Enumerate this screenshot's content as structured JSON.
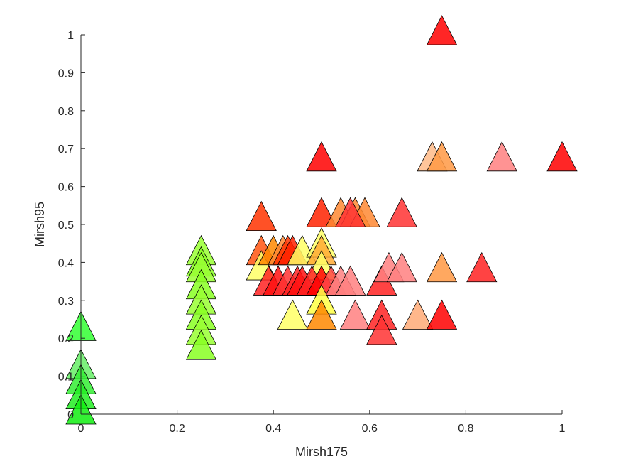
{
  "chart_data": {
    "type": "scatter",
    "title": "",
    "xlabel": "Mirsh175",
    "ylabel": "Mirsh95",
    "xlim": [
      0,
      1
    ],
    "ylim": [
      0,
      1
    ],
    "x_ticks": [
      "0",
      "0.2",
      "0.4",
      "0.6",
      "0.8",
      "1"
    ],
    "y_ticks": [
      "0",
      "0.1",
      "0.2",
      "0.3",
      "0.4",
      "0.5",
      "0.6",
      "0.7",
      "0.8",
      "0.9",
      "1"
    ],
    "x_tick_values": [
      0,
      0.2,
      0.4,
      0.6,
      0.8,
      1
    ],
    "y_tick_values": [
      0,
      0.1,
      0.2,
      0.3,
      0.4,
      0.5,
      0.6,
      0.7,
      0.8,
      0.9,
      1
    ],
    "grid": false,
    "legend": "none",
    "marker": "triangle",
    "points": [
      {
        "x": 0,
        "y": 0.22,
        "color": "#33ff33"
      },
      {
        "x": 0,
        "y": 0.12,
        "color": "#66ee66"
      },
      {
        "x": 0,
        "y": 0.08,
        "color": "#33ee33"
      },
      {
        "x": 0,
        "y": 0.04,
        "color": "#22ee22"
      },
      {
        "x": 0,
        "y": 0.0,
        "color": "#11ee11"
      },
      {
        "x": 0.25,
        "y": 0.42,
        "color": "#99ff33"
      },
      {
        "x": 0.25,
        "y": 0.39,
        "color": "#88ff22"
      },
      {
        "x": 0.25,
        "y": 0.375,
        "color": "#99ff33"
      },
      {
        "x": 0.25,
        "y": 0.33,
        "color": "#88ff22"
      },
      {
        "x": 0.25,
        "y": 0.29,
        "color": "#99ff33"
      },
      {
        "x": 0.25,
        "y": 0.25,
        "color": "#88ff22"
      },
      {
        "x": 0.25,
        "y": 0.21,
        "color": "#99ff33"
      },
      {
        "x": 0.25,
        "y": 0.17,
        "color": "#88ff22"
      },
      {
        "x": 0.375,
        "y": 0.51,
        "color": "#ff3300"
      },
      {
        "x": 0.375,
        "y": 0.42,
        "color": "#ff5511"
      },
      {
        "x": 0.375,
        "y": 0.38,
        "color": "#ffff66"
      },
      {
        "x": 0.4,
        "y": 0.42,
        "color": "#ff8800"
      },
      {
        "x": 0.42,
        "y": 0.42,
        "color": "#ff8833"
      },
      {
        "x": 0.43,
        "y": 0.42,
        "color": "#ff3300"
      },
      {
        "x": 0.44,
        "y": 0.42,
        "color": "#ff2200"
      },
      {
        "x": 0.46,
        "y": 0.42,
        "color": "#ffff66"
      },
      {
        "x": 0.5,
        "y": 0.44,
        "color": "#ffff66"
      },
      {
        "x": 0.5,
        "y": 0.42,
        "color": "#ffaa33"
      },
      {
        "x": 0.5,
        "y": 0.38,
        "color": "#ffff66"
      },
      {
        "x": 0.39,
        "y": 0.34,
        "color": "#ff2222"
      },
      {
        "x": 0.41,
        "y": 0.34,
        "color": "#ff1111"
      },
      {
        "x": 0.43,
        "y": 0.34,
        "color": "#ff3333"
      },
      {
        "x": 0.45,
        "y": 0.34,
        "color": "#ff2222"
      },
      {
        "x": 0.46,
        "y": 0.34,
        "color": "#ff1111"
      },
      {
        "x": 0.48,
        "y": 0.34,
        "color": "#ff2222"
      },
      {
        "x": 0.5,
        "y": 0.34,
        "color": "#ff0000"
      },
      {
        "x": 0.52,
        "y": 0.34,
        "color": "#ff4444"
      },
      {
        "x": 0.54,
        "y": 0.34,
        "color": "#ff8080"
      },
      {
        "x": 0.56,
        "y": 0.34,
        "color": "#ff8080"
      },
      {
        "x": 0.625,
        "y": 0.34,
        "color": "#ff2222"
      },
      {
        "x": 0.5,
        "y": 0.29,
        "color": "#ffff44"
      },
      {
        "x": 0.44,
        "y": 0.25,
        "color": "#ffff66"
      },
      {
        "x": 0.5,
        "y": 0.25,
        "color": "#ff8800"
      },
      {
        "x": 0.57,
        "y": 0.25,
        "color": "#ff8080"
      },
      {
        "x": 0.625,
        "y": 0.25,
        "color": "#ff2222"
      },
      {
        "x": 0.625,
        "y": 0.21,
        "color": "#ff3333"
      },
      {
        "x": 0.7,
        "y": 0.25,
        "color": "#ffaa77"
      },
      {
        "x": 0.75,
        "y": 0.25,
        "color": "#ff0000"
      },
      {
        "x": 0.5,
        "y": 0.52,
        "color": "#ff2200"
      },
      {
        "x": 0.54,
        "y": 0.52,
        "color": "#ff8833"
      },
      {
        "x": 0.57,
        "y": 0.52,
        "color": "#ff8833"
      },
      {
        "x": 0.59,
        "y": 0.52,
        "color": "#ff8833"
      },
      {
        "x": 0.56,
        "y": 0.52,
        "color": "#ff3333"
      },
      {
        "x": 0.667,
        "y": 0.52,
        "color": "#ff3333"
      },
      {
        "x": 0.64,
        "y": 0.375,
        "color": "#ff8080"
      },
      {
        "x": 0.667,
        "y": 0.375,
        "color": "#ff8080"
      },
      {
        "x": 0.75,
        "y": 0.375,
        "color": "#ff9944"
      },
      {
        "x": 0.833,
        "y": 0.375,
        "color": "#ff2222"
      },
      {
        "x": 0.5,
        "y": 0.667,
        "color": "#ff0000"
      },
      {
        "x": 0.73,
        "y": 0.667,
        "color": "#ffbb88"
      },
      {
        "x": 0.75,
        "y": 0.667,
        "color": "#ff9944"
      },
      {
        "x": 0.875,
        "y": 0.667,
        "color": "#ff8080"
      },
      {
        "x": 1.0,
        "y": 0.667,
        "color": "#ff0000"
      },
      {
        "x": 0.75,
        "y": 1.0,
        "color": "#ff0000"
      }
    ]
  }
}
